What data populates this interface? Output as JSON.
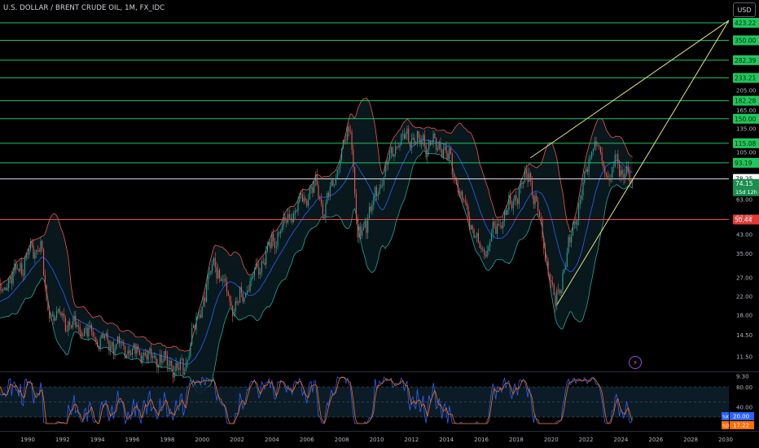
{
  "header": {
    "symbol_title": "U.S. DOLLAR / BRENT CRUDE OIL, 1M, FX_IDC",
    "currency_button": "USD"
  },
  "chart_data": {
    "type": "candlestick",
    "price_scale": "log",
    "x_axis_ticks": [
      "1990",
      "1992",
      "1994",
      "1996",
      "1998",
      "2000",
      "2002",
      "2004",
      "2006",
      "2008",
      "2010",
      "2012",
      "2014",
      "2016",
      "2018",
      "2020",
      "2022",
      "2024",
      "2026",
      "2028",
      "2030"
    ],
    "price_axis_ticks": [
      "205.00",
      "165.00",
      "135.00",
      "105.00",
      "63.00",
      "52.00",
      "43.00",
      "35.00",
      "27.00",
      "22.00",
      "18.00",
      "14.50",
      "11.50",
      "9.30"
    ],
    "horizontal_levels": [
      {
        "value": "423.22",
        "color": "#22c55e"
      },
      {
        "value": "350.00",
        "color": "#22c55e"
      },
      {
        "value": "282.39",
        "color": "#22c55e"
      },
      {
        "value": "233.21",
        "color": "#22c55e"
      },
      {
        "value": "182.28",
        "color": "#22c55e"
      },
      {
        "value": "150.00",
        "color": "#22c55e"
      },
      {
        "value": "115.08",
        "color": "#22c55e"
      },
      {
        "value": "93.19",
        "color": "#22c55e"
      },
      {
        "value": "50.44",
        "color": "#ef4444"
      }
    ],
    "reference_line": {
      "value": "78.25"
    },
    "last_price": {
      "value": "74.15",
      "countdown": "15d 12h"
    },
    "key_closes": [
      {
        "date": "1990-10",
        "close": 40
      },
      {
        "date": "1991-02",
        "close": 19
      },
      {
        "date": "1994-01",
        "close": 14
      },
      {
        "date": "1998-12",
        "close": 10
      },
      {
        "date": "2000-09",
        "close": 32
      },
      {
        "date": "2001-11",
        "close": 19
      },
      {
        "date": "2004-10",
        "close": 50
      },
      {
        "date": "2006-08",
        "close": 74
      },
      {
        "date": "2007-01",
        "close": 55
      },
      {
        "date": "2008-07",
        "close": 139
      },
      {
        "date": "2008-12",
        "close": 40
      },
      {
        "date": "2011-04",
        "close": 123
      },
      {
        "date": "2013-12",
        "close": 110
      },
      {
        "date": "2016-01",
        "close": 34
      },
      {
        "date": "2018-10",
        "close": 85
      },
      {
        "date": "2020-04",
        "close": 20
      },
      {
        "date": "2022-06",
        "close": 120
      },
      {
        "date": "2023-06",
        "close": 75
      },
      {
        "date": "2023-09",
        "close": 95
      },
      {
        "date": "2024-09",
        "close": 74
      }
    ],
    "oscillator": {
      "axis_ticks": [
        "80.00",
        "40.00"
      ],
      "k_label": "%K",
      "k_value": "20.00",
      "d_label": "%D",
      "d_value": "17.22",
      "k_color": "#2962ff",
      "d_color": "#ff6d00"
    },
    "colors": {
      "up": "#26a69a",
      "down": "#ef5350",
      "upper_band": "#ef5350",
      "lower_band": "#26a69a",
      "basis": "#2962ff",
      "trendline": "#e8e17a"
    }
  }
}
